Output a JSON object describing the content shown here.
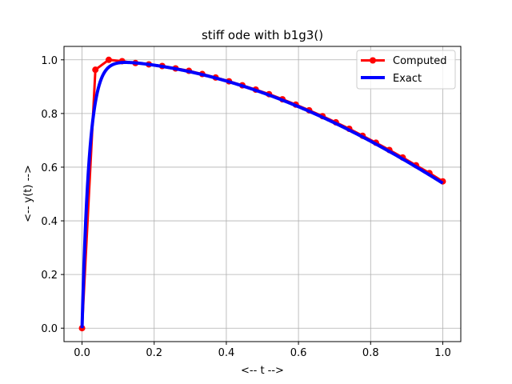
{
  "chart_data": {
    "type": "line",
    "title": "stiff ode with b1g3()",
    "xlabel": "<-- t -->",
    "ylabel": "<-- y(t) -->",
    "xlim": [
      -0.05,
      1.05
    ],
    "ylim": [
      -0.05,
      1.05
    ],
    "xticks": [
      "0.0",
      "0.2",
      "0.4",
      "0.6",
      "0.8",
      "1.0"
    ],
    "yticks": [
      "0.0",
      "0.2",
      "0.4",
      "0.6",
      "0.8",
      "1.0"
    ],
    "grid": true,
    "legend_position": "top-right",
    "series": [
      {
        "name": "Computed",
        "color": "#ff0000",
        "marker": "circle",
        "x": [
          0.0,
          0.037,
          0.0741,
          0.1111,
          0.1481,
          0.1852,
          0.2222,
          0.2593,
          0.2963,
          0.3333,
          0.3704,
          0.4074,
          0.4444,
          0.4815,
          0.5185,
          0.5556,
          0.5926,
          0.6296,
          0.6667,
          0.7037,
          0.7407,
          0.7778,
          0.8148,
          0.8519,
          0.8889,
          0.9259,
          0.963,
          1.0
        ],
        "y": [
          0.0,
          0.963,
          1.0,
          0.995,
          0.988,
          0.983,
          0.977,
          0.968,
          0.959,
          0.947,
          0.934,
          0.92,
          0.905,
          0.889,
          0.872,
          0.853,
          0.833,
          0.812,
          0.79,
          0.767,
          0.743,
          0.717,
          0.691,
          0.664,
          0.636,
          0.607,
          0.578,
          0.547
        ]
      },
      {
        "name": "Exact",
        "color": "#0000ff",
        "marker": "none",
        "function": "cos(t) - exp(-50t)"
      }
    ]
  }
}
